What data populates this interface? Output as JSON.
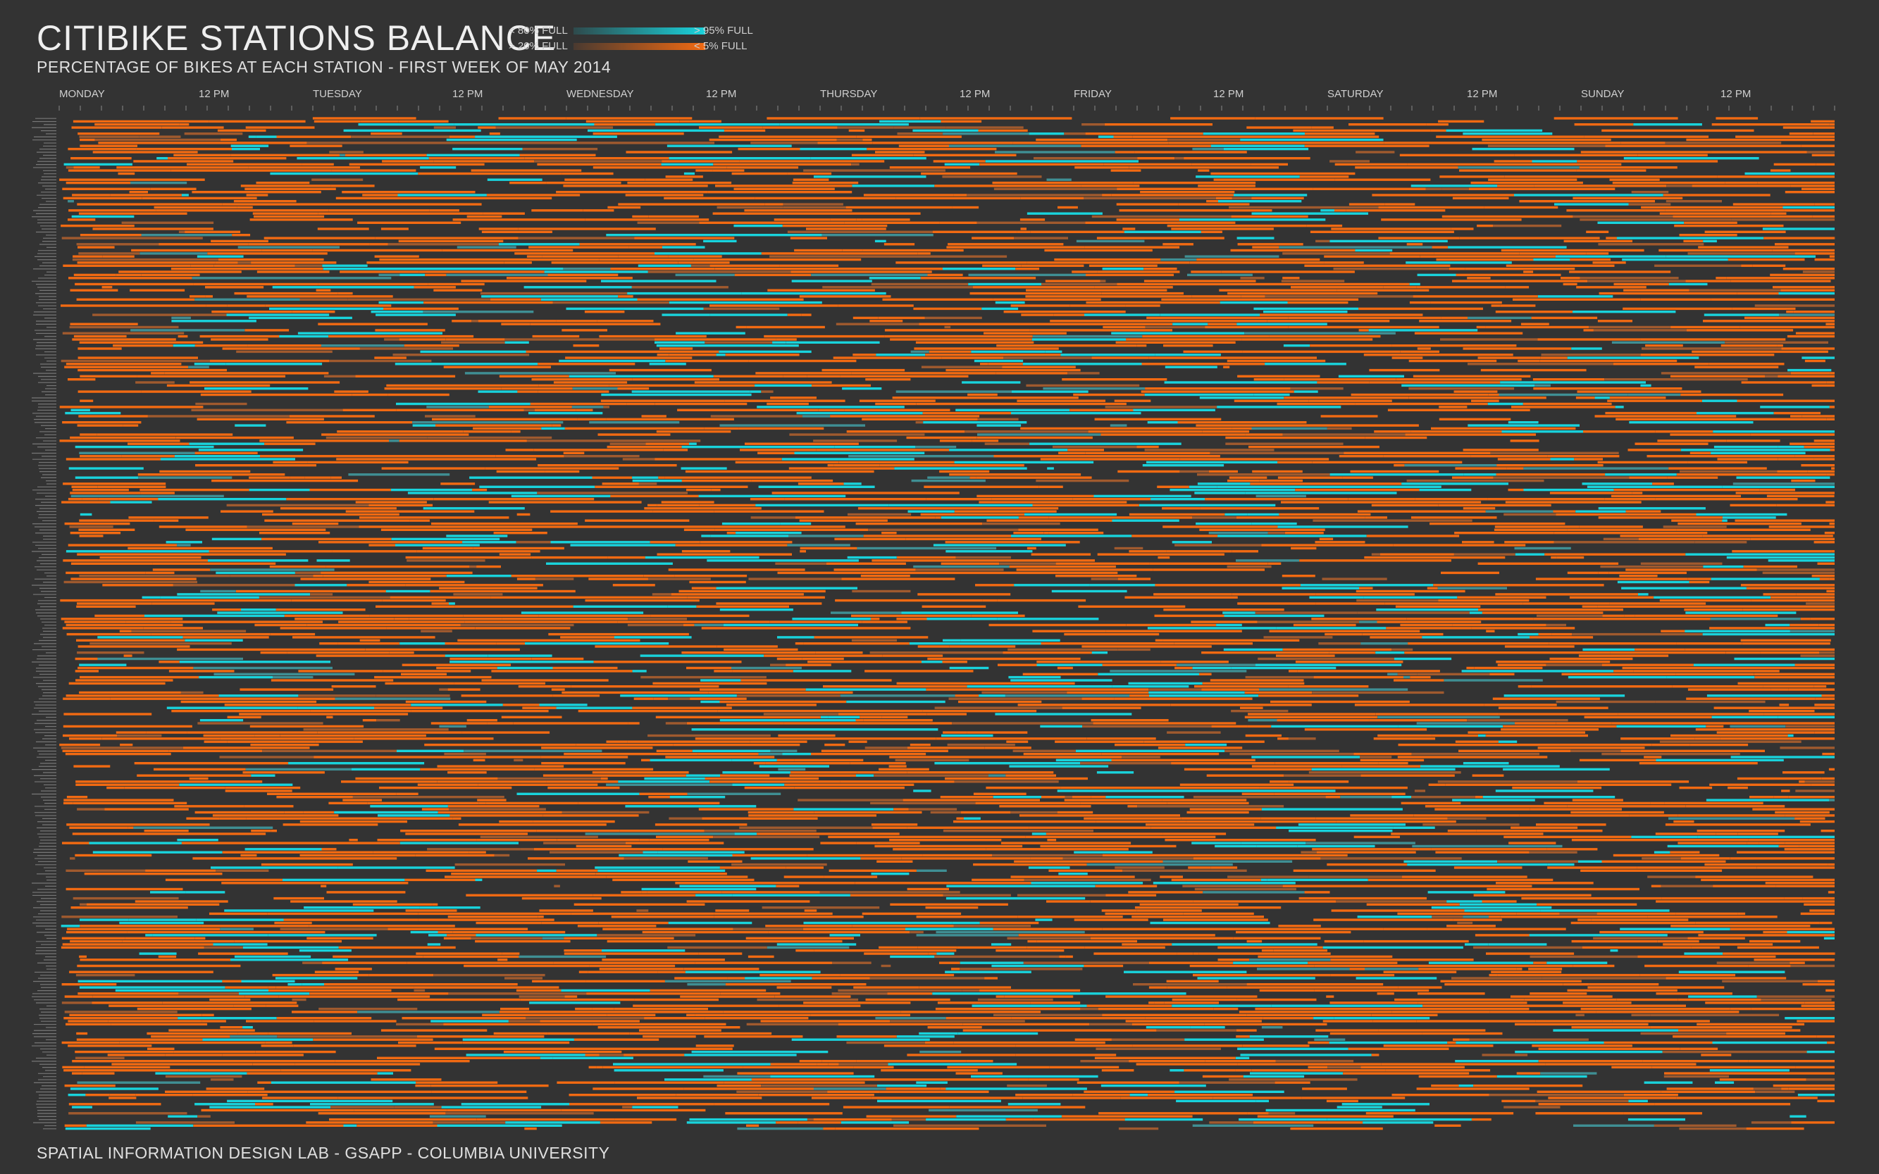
{
  "title": "CITIBIKE STATIONS BALANCE",
  "subtitle": "PERCENTAGE OF BIKES AT EACH STATION - FIRST WEEK OF MAY 2014",
  "footer": "SPATIAL INFORMATION DESIGN LAB - GSAPP - COLUMBIA UNIVERSITY",
  "legend": {
    "high": {
      "left": "< 80% FULL",
      "right": "> 95% FULL",
      "color_from": "#2e4a4c",
      "color_to": "#19d3dc"
    },
    "low": {
      "left": "> 20% FULL",
      "right": "< 5% FULL",
      "color_from": "#4a3a30",
      "color_to": "#f26a12"
    }
  },
  "colors": {
    "background": "#333333",
    "full": "#19d3dc",
    "empty": "#f26a12",
    "muted_full": "#3f8f94",
    "muted_empty": "#a05a2e"
  },
  "chart_data": {
    "type": "heatmap",
    "x_axis": {
      "ticks": [
        "MONDAY",
        "12 PM",
        "TUESDAY",
        "12 PM",
        "WEDNESDAY",
        "12 PM",
        "THURSDAY",
        "12 PM",
        "FRIDAY",
        "12 PM",
        "SATURDAY",
        "12 PM",
        "SUNDAY",
        "12 PM"
      ],
      "tick_hours": [
        0,
        12,
        24,
        36,
        48,
        60,
        72,
        84,
        96,
        108,
        120,
        132,
        144,
        156
      ],
      "range_hours": [
        0,
        168
      ]
    },
    "rows": 330,
    "row_label": "station",
    "cell_states": [
      "below 5% full",
      "5-20% full",
      "20-80% full",
      "80-95% full",
      "above 95% full"
    ],
    "value_range_percent": [
      0,
      100
    ]
  }
}
